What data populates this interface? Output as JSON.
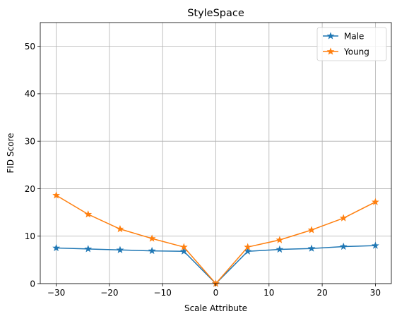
{
  "chart_data": {
    "type": "line",
    "title": "StyleSpace",
    "xlabel": "Scale Attribute",
    "ylabel": "FID Score",
    "xlim": [
      -33,
      33
    ],
    "ylim": [
      0,
      55
    ],
    "xticks": [
      -30,
      -20,
      -10,
      0,
      10,
      20,
      30
    ],
    "yticks": [
      0,
      10,
      20,
      30,
      40,
      50
    ],
    "xtick_labels": [
      "−30",
      "−20",
      "−10",
      "0",
      "10",
      "20",
      "30"
    ],
    "ytick_labels": [
      "0",
      "10",
      "20",
      "30",
      "40",
      "50"
    ],
    "grid": true,
    "legend_position": "top-right",
    "x": [
      -30,
      -24,
      -18,
      -12,
      -6,
      0,
      6,
      12,
      18,
      24,
      30
    ],
    "series": [
      {
        "name": "Male",
        "color": "#1f77b4",
        "marker": "star",
        "values": [
          7.5,
          7.3,
          7.1,
          6.9,
          6.8,
          0,
          6.8,
          7.2,
          7.4,
          7.8,
          8.0
        ]
      },
      {
        "name": "Young",
        "color": "#ff7f0e",
        "marker": "star",
        "values": [
          18.6,
          14.6,
          11.5,
          9.5,
          7.7,
          0,
          7.7,
          9.2,
          11.3,
          13.8,
          17.2
        ]
      }
    ]
  }
}
